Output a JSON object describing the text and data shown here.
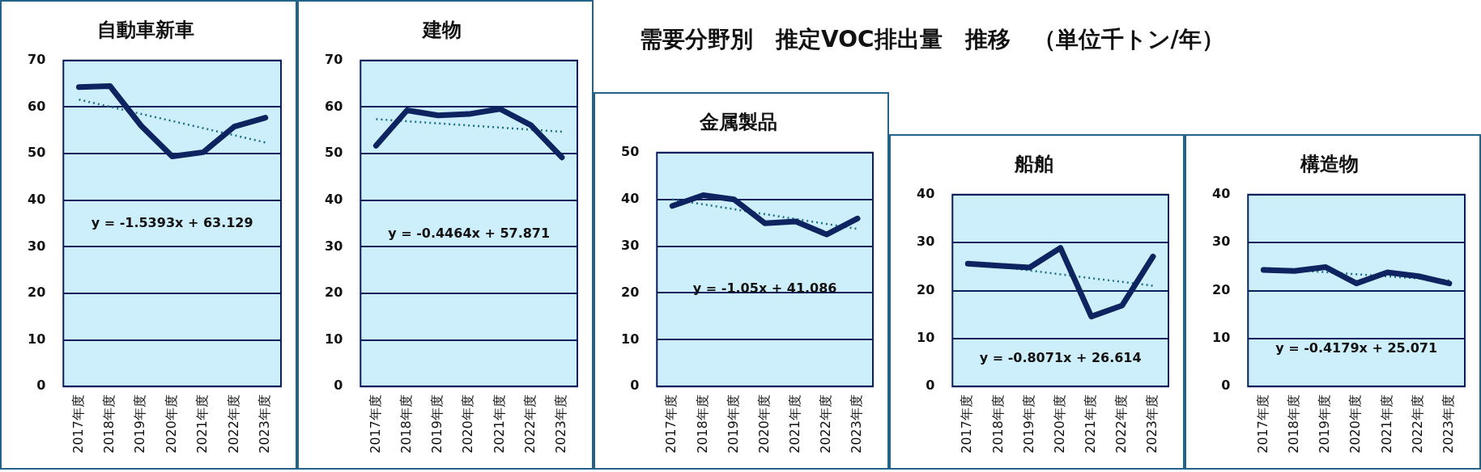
{
  "chart_data": [
    {
      "type": "line",
      "title": "自動車新車",
      "categories": [
        "2017年度",
        "2018年度",
        "2019年度",
        "2020年度",
        "2021年度",
        "2022年度",
        "2023年度"
      ],
      "ylim": [
        0,
        70
      ],
      "yticks": [
        0,
        10,
        20,
        30,
        40,
        50,
        60,
        70
      ],
      "grid": "y",
      "legend": false,
      "marker": "none",
      "series": [
        {
          "color": "#0d2460",
          "line_style": "solid",
          "values": [
            64.3,
            64.5,
            56,
            49.4,
            50.3,
            55.8,
            57.7
          ]
        },
        {
          "type": "line",
          "color": "#1f6f8b",
          "line_style": "dotted",
          "x": [
            "2017年度",
            "2023年度"
          ],
          "values": [
            61.6,
            52.4
          ]
        }
      ],
      "annotations": [
        "y = -1.5393x + 63.129"
      ]
    },
    {
      "type": "line",
      "title": "建物",
      "categories": [
        "2017年度",
        "2018年度",
        "2019年度",
        "2020年度",
        "2021年度",
        "2022年度",
        "2023年度"
      ],
      "ylim": [
        0,
        70
      ],
      "yticks": [
        0,
        10,
        20,
        30,
        40,
        50,
        60,
        70
      ],
      "grid": "y",
      "legend": false,
      "marker": "none",
      "series": [
        {
          "color": "#0d2460",
          "line_style": "solid",
          "values": [
            51.7,
            59.3,
            58.2,
            58.5,
            59.6,
            56.1,
            49.2
          ]
        },
        {
          "type": "line",
          "color": "#1f6f8b",
          "line_style": "dotted",
          "x": [
            "2017年度",
            "2023年度"
          ],
          "values": [
            57.4,
            54.7
          ]
        }
      ],
      "annotations": [
        "y = -0.4464x + 57.871"
      ]
    },
    {
      "type": "line",
      "title": "金属製品",
      "categories": [
        "2017年度",
        "2018年度",
        "2019年度",
        "2020年度",
        "2021年度",
        "2022年度",
        "2023年度"
      ],
      "ylim": [
        0,
        50
      ],
      "yticks": [
        0,
        10,
        20,
        30,
        40,
        50
      ],
      "grid": "y",
      "legend": false,
      "marker": "none",
      "series": [
        {
          "color": "#0d2460",
          "line_style": "solid",
          "values": [
            38.6,
            40.9,
            40.0,
            34.9,
            35.3,
            32.5,
            35.9
          ]
        },
        {
          "type": "line",
          "color": "#1f6f8b",
          "line_style": "dotted",
          "x": [
            "2017年度",
            "2023年度"
          ],
          "values": [
            40.0,
            33.7
          ]
        }
      ],
      "annotations": [
        "y = -1.05x + 41.086"
      ]
    },
    {
      "type": "line",
      "title": "船舶",
      "categories": [
        "2017年度",
        "2018年度",
        "2019年度",
        "2020年度",
        "2021年度",
        "2022年度",
        "2023年度"
      ],
      "ylim": [
        0,
        40
      ],
      "yticks": [
        0,
        10,
        20,
        30,
        40
      ],
      "grid": "y",
      "legend": false,
      "marker": "none",
      "series": [
        {
          "color": "#0d2460",
          "line_style": "solid",
          "values": [
            25.6,
            25.2,
            24.8,
            28.9,
            14.6,
            16.9,
            27.1
          ]
        },
        {
          "type": "line",
          "color": "#1f6f8b",
          "line_style": "dotted",
          "x": [
            "2017年度",
            "2023年度"
          ],
          "values": [
            25.8,
            21.0
          ]
        }
      ],
      "annotations": [
        "y = -0.8071x + 26.614"
      ]
    },
    {
      "type": "line",
      "title": "構造物",
      "categories": [
        "2017年度",
        "2018年度",
        "2019年度",
        "2020年度",
        "2021年度",
        "2022年度",
        "2023年度"
      ],
      "ylim": [
        0,
        40
      ],
      "yticks": [
        0,
        10,
        20,
        30,
        40
      ],
      "grid": "y",
      "legend": false,
      "marker": "none",
      "series": [
        {
          "color": "#0d2460",
          "line_style": "solid",
          "values": [
            24.3,
            24.1,
            24.9,
            21.5,
            23.8,
            23.0,
            21.5
          ]
        },
        {
          "type": "line",
          "color": "#1f6f8b",
          "line_style": "dotted",
          "x": [
            "2017年度",
            "2023年度"
          ],
          "values": [
            24.7,
            22.1
          ]
        }
      ],
      "annotations": [
        "y = -0.4179x + 25.071"
      ]
    },
    {
      "type": "other",
      "title": "需要分野別　推定VOC排出量　推移　（単位千トン/年）"
    }
  ]
}
